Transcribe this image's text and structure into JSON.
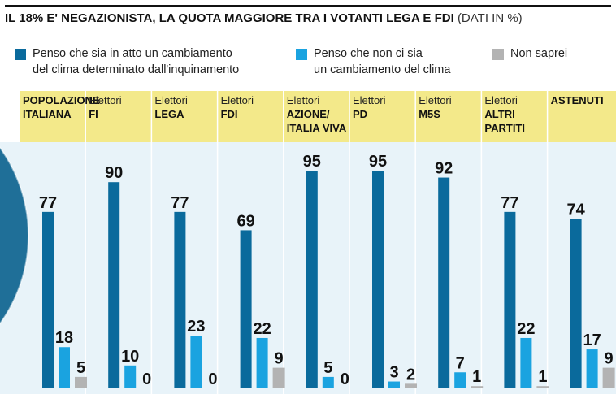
{
  "header": {
    "title": "IL 18% E' NEGAZIONISTA, LA QUOTA MAGGIORE TRA I VOTANTI LEGA E FDI",
    "unit_note": "(DATI IN %)"
  },
  "legend": [
    {
      "line1": "Penso che sia in atto un cambiamento",
      "line2": "del clima determinato dall'inquinamento",
      "color": "#0a6a9c"
    },
    {
      "line1": "Penso che non ci sia",
      "line2": "un cambiamento del clima",
      "color": "#1aa3e0"
    },
    {
      "line1": "Non saprei",
      "line2": "",
      "color": "#b3b3b3"
    }
  ],
  "chart_data": {
    "type": "bar",
    "title": "IL 18% E' NEGAZIONISTA, LA QUOTA MAGGIORE TRA I VOTANTI LEGA E FDI",
    "subtitle": "(DATI IN %)",
    "categories": [
      {
        "prefix": "",
        "name": [
          "POPOLAZIONE",
          "ITALIANA"
        ]
      },
      {
        "prefix": "Elettori",
        "name": [
          "FI"
        ]
      },
      {
        "prefix": "Elettori",
        "name": [
          "LEGA"
        ]
      },
      {
        "prefix": "Elettori",
        "name": [
          "FDI"
        ]
      },
      {
        "prefix": "Elettori",
        "name": [
          "AZIONE/",
          "ITALIA VIVA"
        ]
      },
      {
        "prefix": "Elettori",
        "name": [
          "PD"
        ]
      },
      {
        "prefix": "Elettori",
        "name": [
          "M5S"
        ]
      },
      {
        "prefix": "Elettori",
        "name": [
          "ALTRI",
          "PARTITI"
        ]
      },
      {
        "prefix": "",
        "name": [
          "ASTENUTI"
        ]
      }
    ],
    "series": [
      {
        "name": "Penso che sia in atto un cambiamento del clima determinato dall'inquinamento",
        "color": "#0a6a9c",
        "values": [
          77,
          90,
          77,
          69,
          95,
          95,
          92,
          77,
          74
        ]
      },
      {
        "name": "Penso che non ci sia un cambiamento del clima",
        "color": "#1aa3e0",
        "values": [
          18,
          10,
          23,
          22,
          5,
          3,
          7,
          22,
          17
        ]
      },
      {
        "name": "Non saprei",
        "color": "#b3b3b3",
        "values": [
          5,
          0,
          0,
          9,
          0,
          2,
          1,
          1,
          9
        ]
      }
    ],
    "ylim": [
      0,
      100
    ],
    "header_band_color": "#f3e98a",
    "plot_background_color": "#e8f3f9",
    "globe_color": "#1f6f98"
  }
}
